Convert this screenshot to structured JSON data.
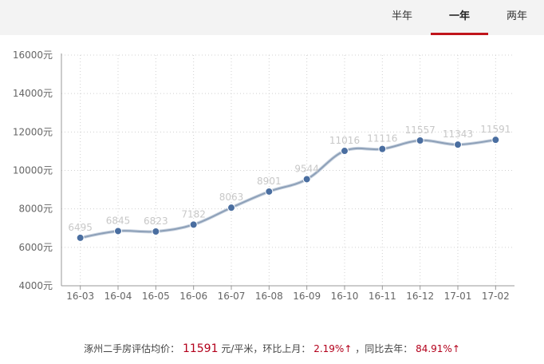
{
  "tabs": [
    {
      "label": "半年",
      "active": false
    },
    {
      "label": "一年",
      "active": true
    },
    {
      "label": "两年",
      "active": false
    }
  ],
  "colors": {
    "accent": "#c0141b",
    "line": "#8da0b8",
    "point": "#4a6ea0",
    "price": "#b3001b",
    "grid": "#d0d0d0",
    "label": "#c8c8c8"
  },
  "chart_data": {
    "type": "line",
    "categories": [
      "16-03",
      "16-04",
      "16-05",
      "16-06",
      "16-07",
      "16-08",
      "16-09",
      "16-10",
      "16-11",
      "16-12",
      "17-01",
      "17-02"
    ],
    "series": [
      {
        "values": [
          6495,
          6845,
          6823,
          7182,
          8063,
          8901,
          9544,
          11016,
          11116,
          11557,
          11343,
          11591
        ]
      }
    ],
    "data_labels": [
      "6495",
      "6845",
      "6823",
      "7182",
      "8063",
      "8901",
      "9544",
      "11016",
      "11116",
      "11557",
      "11343",
      "11591"
    ],
    "y_ticks": [
      4000,
      6000,
      8000,
      10000,
      12000,
      14000,
      16000
    ],
    "y_tick_labels": [
      "4000元",
      "6000元",
      "8000元",
      "10000元",
      "12000元",
      "14000元",
      "16000元"
    ],
    "ylim": [
      4000,
      16000
    ],
    "grid": true,
    "smooth": true
  },
  "footer": {
    "prefix": "涿州二手房评估均价：",
    "price": "11591",
    "unit": "元/平米，环比上月：",
    "mom": "2.19%↑",
    "mid": "，同比去年：",
    "yoy": "84.91%↑"
  }
}
